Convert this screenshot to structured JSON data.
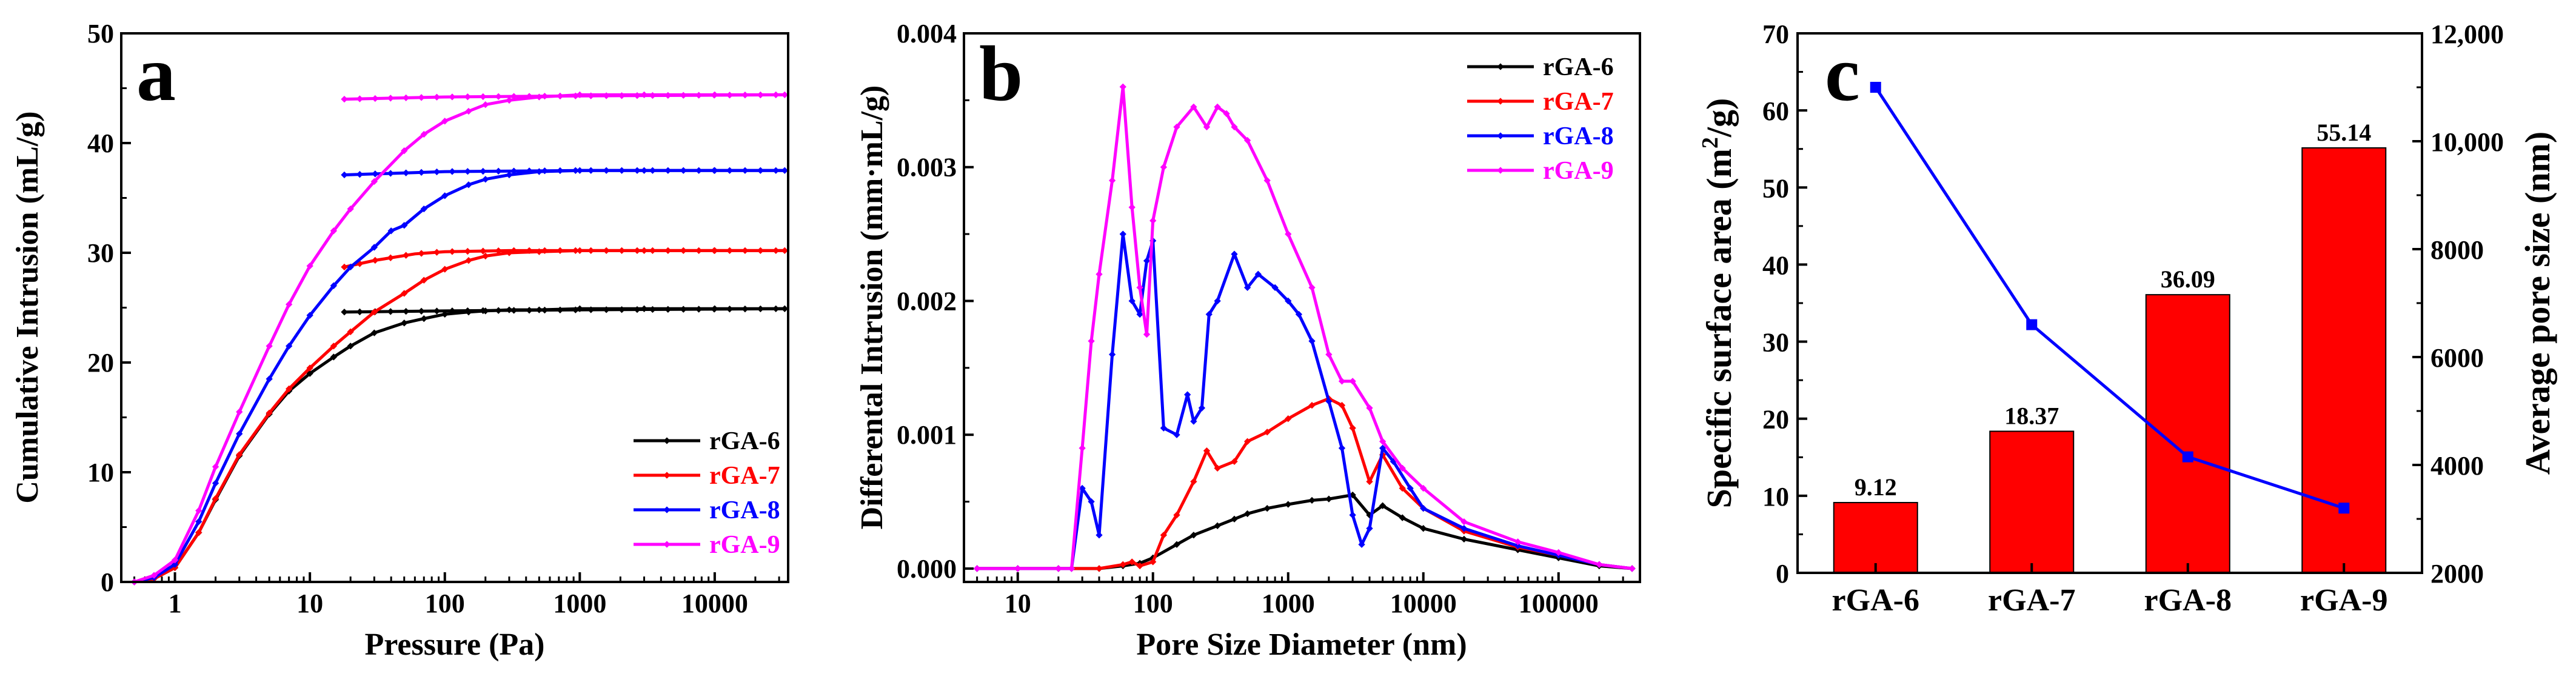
{
  "colors": {
    "rGA-6": "#000000",
    "rGA-7": "#ff0000",
    "rGA-8": "#0000ff",
    "rGA-9": "#ff00ff",
    "bar": "#ff0000",
    "line_c": "#0000ff"
  },
  "chart_data": [
    {
      "panel": "a",
      "type": "line",
      "xscale": "log",
      "xlabel": "Pressure (Pa)",
      "ylabel": "Cumulative Intrusion (mL/g)",
      "xlim": [
        0.4,
        35000
      ],
      "ylim": [
        0,
        50
      ],
      "xticks": [
        1,
        10,
        100,
        1000,
        10000
      ],
      "xtick_labels": [
        "1",
        "10",
        "100",
        "1000",
        "10000"
      ],
      "yticks": [
        0,
        10,
        20,
        30,
        40,
        50
      ],
      "ytick_labels": [
        "0",
        "10",
        "20",
        "30",
        "40",
        "50"
      ],
      "legend_position": "bottom-right",
      "series": [
        {
          "name": "rGA-6",
          "x": [
            0.5,
            0.7,
            1,
            1.5,
            2,
            3,
            5,
            7,
            10,
            15,
            20,
            30,
            50,
            70,
            100,
            150,
            200,
            300,
            500,
            1000,
            3000,
            10000,
            33000
          ],
          "y": [
            0,
            0.3,
            1.3,
            4.5,
            7.5,
            11.5,
            15.3,
            17.4,
            19,
            20.5,
            21.5,
            22.7,
            23.6,
            24,
            24.4,
            24.6,
            24.7,
            24.8,
            24.8,
            24.9,
            24.9,
            24.9,
            24.9
          ],
          "hyst_x": [
            18,
            100,
            1000,
            33000
          ],
          "hyst_y": [
            24.6,
            24.7,
            24.8,
            24.9
          ]
        },
        {
          "name": "rGA-7",
          "x": [
            0.5,
            0.7,
            1,
            1.5,
            2,
            3,
            5,
            7,
            10,
            15,
            20,
            30,
            50,
            70,
            100,
            150,
            200,
            300,
            500,
            1000,
            3000,
            10000,
            33000
          ],
          "y": [
            0,
            0.3,
            1.3,
            4.5,
            7.6,
            11.6,
            15.4,
            17.6,
            19.5,
            21.5,
            22.8,
            24.6,
            26.3,
            27.5,
            28.5,
            29.3,
            29.7,
            30,
            30.1,
            30.2,
            30.2,
            30.2,
            30.2
          ],
          "hyst_x": [
            18,
            30,
            60,
            100,
            300,
            1000,
            33000
          ],
          "hyst_y": [
            28.7,
            29.3,
            29.9,
            30.1,
            30.2,
            30.2,
            30.2
          ]
        },
        {
          "name": "rGA-8",
          "x": [
            0.5,
            0.7,
            1,
            1.5,
            2,
            3,
            5,
            7,
            10,
            15,
            20,
            30,
            40,
            50,
            70,
            100,
            150,
            200,
            300,
            500,
            1000,
            3000,
            10000,
            33000
          ],
          "y": [
            0,
            0.4,
            1.6,
            5.5,
            9,
            13.5,
            18.5,
            21.5,
            24.3,
            27,
            28.7,
            30.5,
            32,
            32.5,
            34,
            35.2,
            36.2,
            36.7,
            37.1,
            37.4,
            37.5,
            37.5,
            37.5,
            37.5
          ],
          "hyst_x": [
            18,
            100,
            1000,
            33000
          ],
          "hyst_y": [
            37.1,
            37.4,
            37.5,
            37.5
          ]
        },
        {
          "name": "rGA-9",
          "x": [
            0.5,
            0.7,
            1,
            1.5,
            2,
            3,
            5,
            7,
            10,
            15,
            20,
            30,
            50,
            70,
            100,
            150,
            200,
            300,
            500,
            1000,
            3000,
            10000,
            33000
          ],
          "y": [
            0,
            0.6,
            2,
            6.5,
            10.5,
            15.5,
            21.5,
            25.3,
            28.8,
            32,
            34,
            36.5,
            39.3,
            40.8,
            42,
            42.9,
            43.5,
            43.9,
            44.2,
            44.4,
            44.4,
            44.4,
            44.4
          ],
          "hyst_x": [
            18,
            100,
            1000,
            33000
          ],
          "hyst_y": [
            44.0,
            44.2,
            44.3,
            44.4
          ]
        }
      ]
    },
    {
      "panel": "b",
      "type": "line",
      "xscale": "log",
      "xlabel": "Pore Size Diameter (nm)",
      "ylabel": "Differental Intrusion (mm·mL/g)",
      "xlim": [
        4,
        400000
      ],
      "ylim": [
        -0.0001,
        0.004
      ],
      "xticks": [
        10,
        100,
        1000,
        10000,
        100000
      ],
      "xtick_labels": [
        "10",
        "100",
        "1000",
        "10000",
        "100000"
      ],
      "yticks": [
        0,
        0.001,
        0.002,
        0.003,
        0.004
      ],
      "ytick_labels": [
        "0.000",
        "0.001",
        "0.002",
        "0.003",
        "0.004"
      ],
      "legend_position": "top-right",
      "series": [
        {
          "name": "rGA-6",
          "x": [
            5,
            10,
            20,
            40,
            60,
            80,
            100,
            150,
            200,
            300,
            400,
            500,
            700,
            1000,
            1500,
            2000,
            3000,
            4000,
            5000,
            7000,
            10000,
            20000,
            50000,
            100000,
            200000,
            350000
          ],
          "y": [
            0,
            0,
            0,
            0,
            2e-05,
            4e-05,
            8e-05,
            0.00018,
            0.00025,
            0.00032,
            0.00037,
            0.00041,
            0.00045,
            0.00048,
            0.00051,
            0.00052,
            0.00055,
            0.0004,
            0.00047,
            0.00038,
            0.0003,
            0.00022,
            0.00014,
            8e-05,
            2e-05,
            0
          ]
        },
        {
          "name": "rGA-7",
          "x": [
            5,
            10,
            20,
            40,
            60,
            70,
            80,
            100,
            120,
            150,
            200,
            250,
            300,
            400,
            500,
            700,
            1000,
            1500,
            2000,
            2500,
            3000,
            4000,
            5000,
            7000,
            10000,
            20000,
            50000,
            100000,
            200000,
            350000
          ],
          "y": [
            0,
            0,
            0,
            0,
            3e-05,
            5e-05,
            2e-05,
            5e-05,
            0.00025,
            0.0004,
            0.00065,
            0.00088,
            0.00075,
            0.0008,
            0.00095,
            0.00102,
            0.00112,
            0.00122,
            0.00127,
            0.00122,
            0.00105,
            0.00065,
            0.00085,
            0.0006,
            0.00045,
            0.00028,
            0.00016,
            0.0001,
            3e-05,
            0
          ]
        },
        {
          "name": "rGA-8",
          "x": [
            5,
            10,
            20,
            25,
            30,
            35,
            40,
            50,
            60,
            70,
            80,
            90,
            100,
            120,
            150,
            180,
            200,
            230,
            260,
            300,
            400,
            500,
            600,
            800,
            1000,
            1200,
            1500,
            2000,
            2500,
            3000,
            3500,
            4000,
            5000,
            6000,
            8000,
            10000,
            20000,
            50000,
            100000,
            200000,
            350000
          ],
          "y": [
            0,
            0,
            0,
            0,
            0.0006,
            0.0005,
            0.00025,
            0.0016,
            0.0025,
            0.002,
            0.0019,
            0.0023,
            0.00245,
            0.00105,
            0.001,
            0.0013,
            0.0011,
            0.0012,
            0.0019,
            0.002,
            0.00235,
            0.0021,
            0.0022,
            0.0021,
            0.002,
            0.0019,
            0.0017,
            0.00125,
            0.0009,
            0.0004,
            0.00018,
            0.0003,
            0.0009,
            0.0008,
            0.0006,
            0.00045,
            0.0003,
            0.00017,
            0.0001,
            3e-05,
            0
          ]
        },
        {
          "name": "rGA-9",
          "x": [
            5,
            10,
            20,
            25,
            30,
            35,
            40,
            50,
            60,
            70,
            80,
            90,
            100,
            120,
            150,
            200,
            250,
            300,
            350,
            400,
            500,
            700,
            1000,
            1500,
            2000,
            2500,
            3000,
            4000,
            5000,
            7000,
            10000,
            20000,
            50000,
            100000,
            200000,
            350000
          ],
          "y": [
            0,
            0,
            0,
            0,
            0.0009,
            0.0017,
            0.0022,
            0.0029,
            0.0036,
            0.0027,
            0.0021,
            0.00175,
            0.0026,
            0.003,
            0.0033,
            0.00345,
            0.0033,
            0.00345,
            0.0034,
            0.0033,
            0.0032,
            0.0029,
            0.0025,
            0.0021,
            0.0016,
            0.0014,
            0.0014,
            0.0012,
            0.00095,
            0.00075,
            0.0006,
            0.00035,
            0.0002,
            0.00012,
            3e-05,
            0
          ]
        }
      ]
    },
    {
      "panel": "c",
      "type": "bar",
      "categories": [
        "rGA-6",
        "rGA-7",
        "rGA-8",
        "rGA-9"
      ],
      "values": [
        9.12,
        18.37,
        36.09,
        55.14
      ],
      "value_labels": [
        "9.12",
        "18.37",
        "36.09",
        "55.14"
      ],
      "ylabel": "Specific surface area (m²/g)",
      "ylabel_parts": [
        "Specific surface area (m",
        "2",
        "/g)"
      ],
      "ylim": [
        0,
        70
      ],
      "yticks": [
        0,
        10,
        20,
        30,
        40,
        50,
        60,
        70
      ],
      "ytick_labels": [
        "0",
        "10",
        "20",
        "30",
        "40",
        "50",
        "60",
        "70"
      ],
      "secondary": {
        "type": "line",
        "name": "Average pore size",
        "values": [
          11000,
          6600,
          4150,
          3200
        ],
        "ylabel": "Average pore size (nm)",
        "ylim": [
          2000,
          12000
        ],
        "yticks": [
          2000,
          4000,
          6000,
          8000,
          10000,
          12000
        ],
        "ytick_labels": [
          "2000",
          "4000",
          "6000",
          "8000",
          "10,000",
          "12,000"
        ]
      }
    }
  ],
  "panels": {
    "a": {
      "letter": "a"
    },
    "b": {
      "letter": "b"
    },
    "c": {
      "letter": "c"
    }
  }
}
